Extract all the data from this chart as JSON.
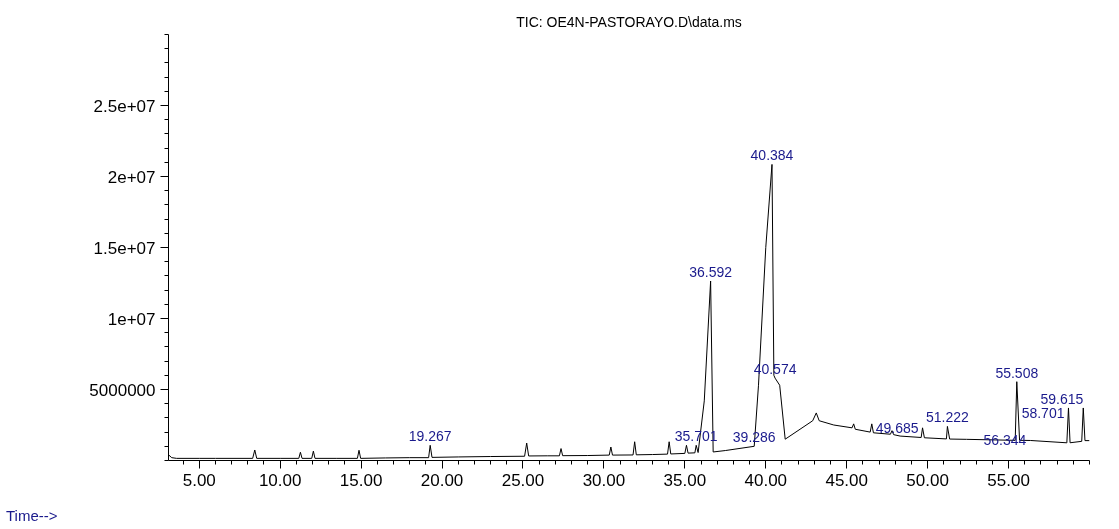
{
  "chart_data": {
    "type": "line",
    "title": "TIC: OE4N-PASTORAYO.D\\data.ms",
    "xlabel": "Time-->",
    "x": [
      3.1,
      3.3,
      3.6,
      5.0,
      6.0,
      8.3,
      8.43,
      8.55,
      10.0,
      11.15,
      11.25,
      11.35,
      11.95,
      12.05,
      12.15,
      13.5,
      14.77,
      14.87,
      14.97,
      16.5,
      18.0,
      19.17,
      19.267,
      19.38,
      21.0,
      23.0,
      25.1,
      25.23,
      25.35,
      26.5,
      27.25,
      27.35,
      27.45,
      29.0,
      30.33,
      30.43,
      30.53,
      31.8,
      31.9,
      32.0,
      33.0,
      33.93,
      34.03,
      34.13,
      35.0,
      35.1,
      35.2,
      35.62,
      35.701,
      35.82,
      36.2,
      36.592,
      36.75,
      37.5,
      39.286,
      39.55,
      40.0,
      40.384,
      40.5,
      40.574,
      40.86,
      41.2,
      42.9,
      43.12,
      43.3,
      44.2,
      45.33,
      45.43,
      45.53,
      46.45,
      46.55,
      46.65,
      47.7,
      47.8,
      47.9,
      48.3,
      49.6,
      49.685,
      49.8,
      51.16,
      51.222,
      51.36,
      52.4,
      55.41,
      55.508,
      55.68,
      56.344,
      58.56,
      58.6,
      58.701,
      58.8,
      59.52,
      59.615,
      59.72,
      60.0
    ],
    "values": [
      400000,
      200000,
      150000,
      150000,
      150000,
      150000,
      740000,
      150000,
      150000,
      150000,
      580000,
      150000,
      150000,
      660000,
      150000,
      150000,
      150000,
      720000,
      150000,
      180000,
      200000,
      200000,
      1070000,
      220000,
      250000,
      280000,
      300000,
      1230000,
      320000,
      330000,
      330000,
      840000,
      340000,
      350000,
      380000,
      950000,
      380000,
      390000,
      1320000,
      400000,
      420000,
      450000,
      1320000,
      460000,
      500000,
      1070000,
      520000,
      540000,
      1070000,
      560000,
      4200000,
      12640000,
      600000,
      700000,
      1000000,
      5300000,
      15000000,
      20850000,
      6000000,
      5800000,
      5300000,
      1500000,
      2800000,
      3350000,
      2800000,
      2500000,
      2300000,
      2580000,
      2200000,
      2000000,
      2580000,
      1950000,
      1850000,
      2100000,
      1820000,
      1720000,
      1620000,
      2300000,
      1600000,
      1520000,
      2400000,
      1510000,
      1490000,
      1420000,
      5550000,
      1420000,
      1410000,
      1250000,
      1240000,
      3700000,
      1250000,
      1350000,
      3700000,
      1400000,
      1400000
    ],
    "color": "#000000",
    "xlim": [
      3.1,
      60
    ],
    "ylim": [
      0,
      30000000
    ],
    "xticks": [
      {
        "value": 5,
        "label": "5.00"
      },
      {
        "value": 10,
        "label": "10.00"
      },
      {
        "value": 15,
        "label": "15.00"
      },
      {
        "value": 20,
        "label": "20.00"
      },
      {
        "value": 25,
        "label": "25.00"
      },
      {
        "value": 30,
        "label": "30.00"
      },
      {
        "value": 35,
        "label": "35.00"
      },
      {
        "value": 40,
        "label": "40.00"
      },
      {
        "value": 45,
        "label": "45.00"
      },
      {
        "value": 50,
        "label": "50.00"
      },
      {
        "value": 55,
        "label": "55.00"
      }
    ],
    "yticks": [
      {
        "value": 5000000,
        "label": "5000000"
      },
      {
        "value": 10000000,
        "label": "1e+07"
      },
      {
        "value": 15000000,
        "label": "1.5e+07"
      },
      {
        "value": 20000000,
        "label": "2e+07"
      },
      {
        "value": 25000000,
        "label": "2.5e+07"
      }
    ],
    "grid": false,
    "annotations": [
      {
        "text": "19.267",
        "x": 19.267,
        "y": 1070000
      },
      {
        "text": "35.701",
        "x": 35.701,
        "y": 1070000
      },
      {
        "text": "36.592",
        "x": 36.592,
        "y": 12640000
      },
      {
        "text": "39.286",
        "x": 39.286,
        "y": 1000000
      },
      {
        "text": "40.384",
        "x": 40.384,
        "y": 20850000
      },
      {
        "text": "40.574",
        "x": 40.574,
        "y": 5800000
      },
      {
        "text": "49.685",
        "x": 49.685,
        "y": 2300000
      },
      {
        "text": "51.222",
        "x": 51.222,
        "y": 2400000
      },
      {
        "text": "55.508",
        "x": 55.508,
        "y": 5550000
      },
      {
        "text": "56.344",
        "x": 56.344,
        "y": 1410000
      },
      {
        "text": "58.701",
        "x": 58.701,
        "y": 3700000
      },
      {
        "text": "59.615",
        "x": 59.615,
        "y": 3700000
      }
    ]
  }
}
